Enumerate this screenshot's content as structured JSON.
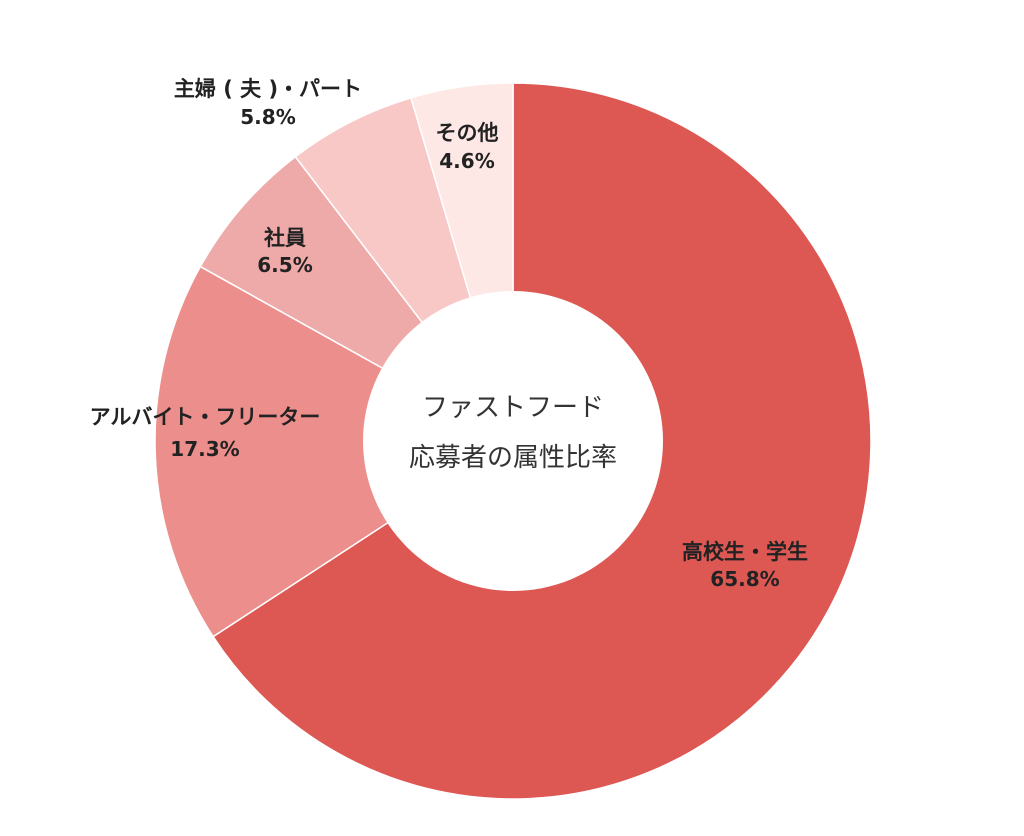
{
  "chart_data": {
    "type": "pie",
    "title": "ファストフード",
    "subtitle": "応募者の属性比率",
    "slices": [
      {
        "label": "高校生・学生",
        "value": 65.8,
        "value_label": "65.8%",
        "color": "#dd5753"
      },
      {
        "label": "アルバイト・フリーター",
        "value": 17.3,
        "value_label": "17.3%",
        "color": "#ec8e8b"
      },
      {
        "label": "社員",
        "value": 6.5,
        "value_label": "6.5%",
        "color": "#eeaaa8"
      },
      {
        "label": "主婦 ( 夫 )・パート",
        "value": 5.8,
        "value_label": "5.8%",
        "color": "#f8c8c6"
      },
      {
        "label": "その他",
        "value": 4.6,
        "value_label": "4.6%",
        "color": "#fde8e6"
      }
    ]
  }
}
